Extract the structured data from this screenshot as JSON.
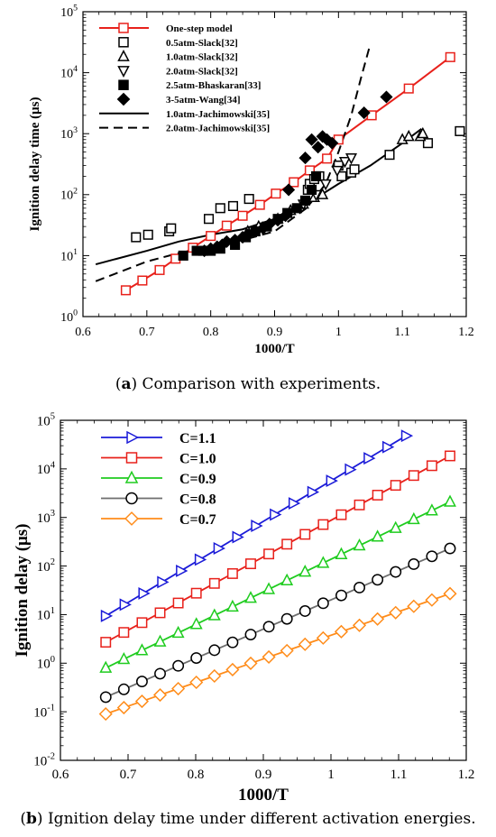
{
  "captions": {
    "a": {
      "label": "a",
      "text": "Comparison with experiments."
    },
    "b": {
      "label": "b",
      "text": "Ignition delay time under different activation energies."
    }
  },
  "chart_data": [
    {
      "id": "a",
      "type": "scatter",
      "xlabel": "1000/T",
      "ylabel": "Ignition delay time (μs)",
      "xlim": [
        0.6,
        1.2
      ],
      "ylim_log10": [
        0,
        5
      ],
      "y_scale": "log",
      "x_ticks": [
        0.6,
        0.7,
        0.8,
        0.9,
        1,
        1.1,
        1.2
      ],
      "y_tick_exponents": [
        0,
        1,
        2,
        3,
        4,
        5
      ],
      "legend_position": "top-left",
      "series": [
        {
          "name": "One-step model",
          "marker": "open-square",
          "line": "solid",
          "color": "#e8211b",
          "x": [
            0.667,
            0.693,
            0.72,
            0.745,
            0.772,
            0.8,
            0.825,
            0.85,
            0.877,
            0.902,
            0.93,
            0.955,
            0.982,
            1.0,
            1.052,
            1.11,
            1.175
          ],
          "y": [
            2.7,
            3.9,
            5.8,
            8.9,
            13.5,
            21,
            31,
            45,
            68,
            104,
            160,
            250,
            390,
            800,
            2000,
            5500,
            18000
          ]
        },
        {
          "name": "0.5atm-Slack[32]",
          "marker": "open-square",
          "line": "none",
          "color": "#000000",
          "x": [
            0.683,
            0.702,
            0.735,
            0.738,
            0.797,
            0.815,
            0.835,
            0.86,
            0.952,
            0.955,
            0.962,
            0.97,
            1.0,
            1.005,
            1.02,
            1.025,
            1.08,
            1.14,
            1.19
          ],
          "y": [
            20,
            22,
            25,
            28,
            40,
            60,
            65,
            85,
            120,
            150,
            180,
            200,
            300,
            200,
            230,
            260,
            450,
            700,
            1100
          ]
        },
        {
          "name": "1.0atm-Slack[32]",
          "marker": "open-triangle-up",
          "line": "none",
          "color": "#000000",
          "x": [
            0.858,
            0.875,
            0.905,
            0.925,
            0.945,
            0.962,
            0.975,
            1.1,
            1.11,
            1.128,
            1.132
          ],
          "y": [
            25,
            30,
            40,
            55,
            70,
            90,
            100,
            800,
            900,
            900,
            1000
          ]
        },
        {
          "name": "2.0atm-Slack[32]",
          "marker": "open-triangle-down",
          "line": "none",
          "color": "#000000",
          "x": [
            0.922,
            0.945,
            0.965,
            0.98,
            0.998,
            1.01,
            1.02
          ],
          "y": [
            50,
            70,
            100,
            150,
            250,
            350,
            400
          ]
        },
        {
          "name": "2.5atm-Bhaskaran[33]",
          "marker": "filled-square",
          "line": "none",
          "color": "#000000",
          "x": [
            0.757,
            0.778,
            0.788,
            0.8,
            0.815,
            0.838,
            0.855,
            0.87,
            0.888,
            0.905,
            0.92,
            0.935,
            0.948,
            0.958,
            0.965
          ],
          "y": [
            10,
            12,
            12,
            12,
            13,
            15,
            20,
            25,
            30,
            40,
            50,
            60,
            80,
            120,
            200
          ]
        },
        {
          "name": "3-5atm-Wang[34]",
          "marker": "filled-diamond",
          "line": "none",
          "color": "#000000",
          "x": [
            0.79,
            0.8,
            0.81,
            0.818,
            0.825,
            0.838,
            0.85,
            0.858,
            0.87,
            0.882,
            0.892,
            0.905,
            0.917,
            0.922,
            0.948,
            0.958,
            0.968,
            0.975,
            0.982,
            0.99,
            1.04,
            1.075
          ],
          "y": [
            12,
            13,
            14,
            15,
            17,
            18,
            20,
            22,
            25,
            28,
            33,
            38,
            45,
            120,
            400,
            800,
            600,
            900,
            800,
            700,
            2200,
            4000
          ]
        },
        {
          "name": "1.0atm-Jachimowski[35]",
          "marker": "none",
          "line": "solid",
          "color": "#000000",
          "x": [
            0.62,
            0.7,
            0.75,
            0.8,
            0.85,
            0.9,
            0.95,
            1.0,
            1.05,
            1.1,
            1.13
          ],
          "y": [
            7.2,
            12,
            17,
            22,
            27,
            40,
            70,
            150,
            300,
            700,
            1200
          ]
        },
        {
          "name": "2.0atm-Jachimowski[35]",
          "marker": "none",
          "line": "dashed",
          "color": "#000000",
          "x": [
            0.62,
            0.7,
            0.75,
            0.8,
            0.85,
            0.9,
            0.95,
            0.98,
            1.0,
            1.02,
            1.035,
            1.05
          ],
          "y": [
            3.8,
            8,
            11,
            14,
            18,
            25,
            60,
            150,
            500,
            2000,
            8000,
            30000
          ]
        }
      ]
    },
    {
      "id": "b",
      "type": "line",
      "xlabel": "1000/T",
      "ylabel": "Ignition delay (μs)",
      "xlim": [
        0.6,
        1.2
      ],
      "ylim_log10": [
        -2,
        5
      ],
      "y_scale": "log",
      "x_ticks": [
        0.6,
        0.7,
        0.8,
        0.9,
        1,
        1.1,
        1.2
      ],
      "x_tick_labels": [
        "0.6",
        "0.7",
        "0.8",
        "0.9",
        "1",
        "1.1",
        "1.2"
      ],
      "y_tick_exponents": [
        -2,
        -1,
        0,
        1,
        2,
        3,
        4,
        5
      ],
      "legend_position": "top-left",
      "series": [
        {
          "name": "C=1.1",
          "marker": "triangle-right",
          "color": "#1b1bd8",
          "x0": 0.667,
          "x1": 1.111,
          "n": 17,
          "y0": 9.4,
          "y1": 48000
        },
        {
          "name": "C=1.0",
          "marker": "square",
          "color": "#e8211b",
          "x0": 0.667,
          "x1": 1.176,
          "n": 20,
          "y0": 2.7,
          "y1": 18500
        },
        {
          "name": "C=0.9",
          "marker": "triangle-up",
          "color": "#1fcc1f",
          "x0": 0.667,
          "x1": 1.176,
          "n": 20,
          "y0": 0.8,
          "y1": 2100
        },
        {
          "name": "C=0.8",
          "marker": "circle",
          "color": "#6e6e6e",
          "marker_color": "#000000",
          "x0": 0.667,
          "x1": 1.176,
          "n": 20,
          "y0": 0.2,
          "y1": 230
        },
        {
          "name": "C=0.7",
          "marker": "diamond",
          "color": "#ff8c1a",
          "x0": 0.667,
          "x1": 1.176,
          "n": 20,
          "y0": 0.09,
          "y1": 27
        }
      ]
    }
  ]
}
